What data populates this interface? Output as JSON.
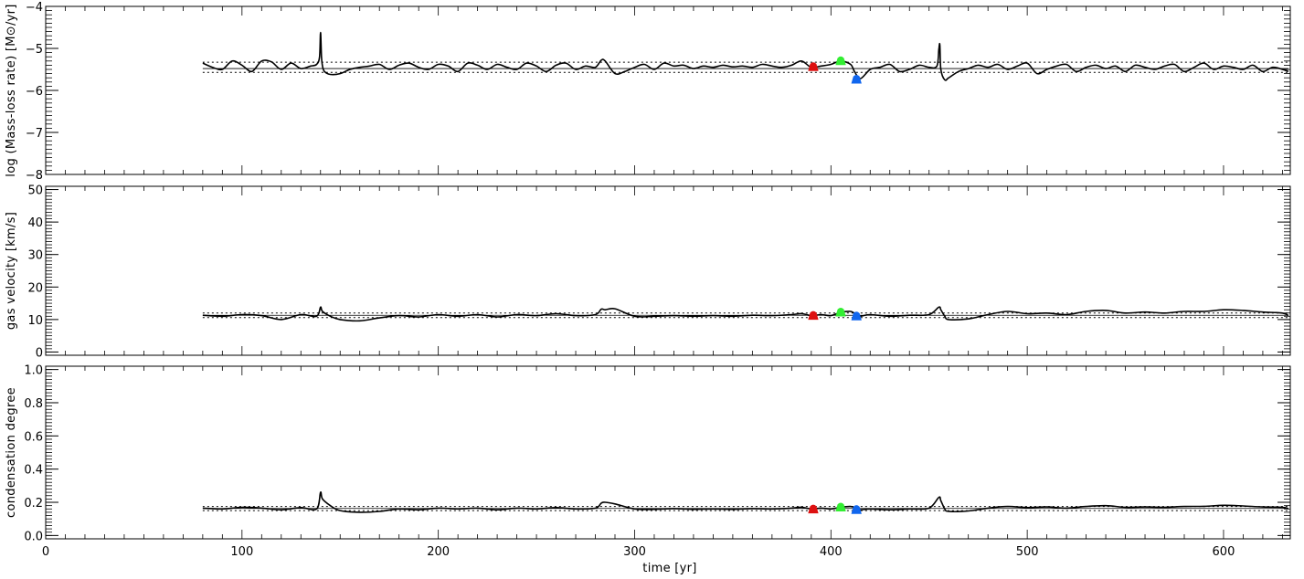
{
  "chart_data": [
    {
      "type": "line",
      "ylabel": "log (Mass-loss rate) [M⊙/yr]",
      "ylim": [
        -8,
        -4
      ],
      "yticks": [
        -8,
        -7,
        -6,
        -5,
        -4
      ],
      "xlim": [
        0,
        634
      ],
      "grid": false,
      "dashed_levels": [
        -5.33,
        -5.57
      ],
      "mean_level": -5.48,
      "series": [
        {
          "x": [
            80,
            85,
            90,
            95,
            100,
            105,
            110,
            115,
            120,
            125,
            130,
            135,
            138,
            139.5,
            140,
            140.5,
            141,
            142,
            145,
            150,
            155,
            160,
            165,
            170,
            175,
            180,
            185,
            190,
            195,
            200,
            205,
            210,
            215,
            220,
            225,
            230,
            235,
            240,
            245,
            250,
            255,
            260,
            265,
            270,
            275,
            280,
            283,
            285,
            290,
            295,
            300,
            305,
            310,
            315,
            320,
            325,
            330,
            335,
            340,
            345,
            350,
            355,
            360,
            365,
            370,
            375,
            380,
            385,
            390,
            395,
            400,
            405,
            410,
            412,
            415,
            420,
            425,
            430,
            435,
            440,
            445,
            450,
            454,
            455,
            455.5,
            456,
            458,
            460,
            465,
            470,
            475,
            480,
            485,
            490,
            495,
            500,
            505,
            510,
            515,
            520,
            525,
            530,
            535,
            540,
            545,
            550,
            555,
            560,
            565,
            570,
            575,
            580,
            585,
            590,
            595,
            600,
            605,
            610,
            615,
            620,
            625,
            630,
            633
          ],
          "y": [
            -5.35,
            -5.45,
            -5.5,
            -5.3,
            -5.4,
            -5.55,
            -5.3,
            -5.32,
            -5.5,
            -5.35,
            -5.48,
            -5.42,
            -5.38,
            -5.2,
            -4.62,
            -5.2,
            -5.42,
            -5.55,
            -5.62,
            -5.6,
            -5.5,
            -5.45,
            -5.42,
            -5.38,
            -5.5,
            -5.4,
            -5.35,
            -5.45,
            -5.5,
            -5.38,
            -5.42,
            -5.55,
            -5.35,
            -5.4,
            -5.5,
            -5.38,
            -5.45,
            -5.5,
            -5.35,
            -5.42,
            -5.55,
            -5.4,
            -5.35,
            -5.5,
            -5.42,
            -5.45,
            -5.28,
            -5.3,
            -5.6,
            -5.55,
            -5.45,
            -5.38,
            -5.5,
            -5.35,
            -5.42,
            -5.4,
            -5.48,
            -5.42,
            -5.45,
            -5.4,
            -5.44,
            -5.42,
            -5.45,
            -5.38,
            -5.42,
            -5.45,
            -5.4,
            -5.3,
            -5.45,
            -5.42,
            -5.38,
            -5.3,
            -5.38,
            -5.55,
            -5.72,
            -5.5,
            -5.45,
            -5.38,
            -5.55,
            -5.5,
            -5.4,
            -5.45,
            -5.42,
            -5.0,
            -4.92,
            -5.5,
            -5.75,
            -5.7,
            -5.55,
            -5.48,
            -5.4,
            -5.45,
            -5.38,
            -5.5,
            -5.42,
            -5.35,
            -5.6,
            -5.5,
            -5.42,
            -5.38,
            -5.55,
            -5.45,
            -5.4,
            -5.48,
            -5.42,
            -5.55,
            -5.4,
            -5.45,
            -5.5,
            -5.42,
            -5.38,
            -5.55,
            -5.45,
            -5.35,
            -5.5,
            -5.42,
            -5.45,
            -5.5,
            -5.4,
            -5.55,
            -5.45,
            -5.5,
            -5.55
          ]
        }
      ],
      "markers": [
        {
          "x": 391,
          "y": -5.44,
          "color": "#dd1111"
        },
        {
          "x": 405,
          "y": -5.3,
          "color": "#33ee33"
        },
        {
          "x": 413,
          "y": -5.74,
          "color": "#1166ee"
        }
      ]
    },
    {
      "type": "line",
      "ylabel": "gas velocity [km/s]",
      "ylim": [
        -1,
        51
      ],
      "yticks": [
        0,
        10,
        20,
        30,
        40,
        50
      ],
      "xlim": [
        0,
        634
      ],
      "grid": false,
      "dashed_levels": [
        12.0,
        10.6
      ],
      "mean_level": 11.3,
      "series": [
        {
          "x": [
            80,
            90,
            100,
            110,
            120,
            130,
            138,
            140,
            141,
            145,
            150,
            160,
            170,
            180,
            190,
            200,
            210,
            220,
            230,
            240,
            250,
            260,
            270,
            280,
            283,
            285,
            290,
            300,
            310,
            320,
            330,
            340,
            350,
            360,
            370,
            380,
            385,
            390,
            395,
            400,
            405,
            410,
            413,
            415,
            420,
            430,
            440,
            450,
            455,
            456,
            458,
            460,
            470,
            480,
            490,
            500,
            510,
            520,
            530,
            540,
            550,
            560,
            570,
            580,
            590,
            600,
            610,
            620,
            630,
            633
          ],
          "y": [
            11.3,
            11.0,
            11.5,
            11.2,
            10.0,
            11.5,
            11.0,
            13.8,
            12.5,
            11.0,
            10.0,
            9.6,
            10.5,
            11.2,
            10.8,
            11.5,
            11.0,
            11.5,
            10.8,
            11.5,
            11.2,
            11.8,
            11.2,
            11.5,
            13.2,
            13.0,
            13.3,
            11.0,
            11.0,
            11.2,
            11.0,
            11.2,
            11.0,
            11.3,
            11.2,
            11.5,
            11.8,
            11.2,
            11.5,
            11.2,
            12.2,
            12.5,
            11.5,
            11.0,
            11.5,
            11.0,
            11.3,
            11.5,
            13.8,
            13.0,
            11.0,
            10.0,
            10.2,
            11.5,
            12.5,
            11.8,
            12.0,
            11.5,
            12.5,
            12.8,
            12.0,
            12.3,
            12.0,
            12.5,
            12.5,
            13.0,
            12.8,
            12.3,
            12.0,
            11.2
          ]
        }
      ],
      "markers": [
        {
          "x": 391,
          "y": 11.2,
          "color": "#dd1111"
        },
        {
          "x": 405,
          "y": 12.2,
          "color": "#33ee33"
        },
        {
          "x": 413,
          "y": 11.0,
          "color": "#1166ee"
        }
      ]
    },
    {
      "type": "line",
      "ylabel": "condensation degree",
      "ylim": [
        -0.02,
        1.02
      ],
      "yticks": [
        0.0,
        0.2,
        0.4,
        0.6,
        0.8,
        1.0
      ],
      "yticklabels": [
        "0.0",
        "0.2",
        "0.4",
        "0.6",
        "0.8",
        "1.0"
      ],
      "xlim": [
        0,
        634
      ],
      "xticks": [
        0,
        100,
        200,
        300,
        400,
        500,
        600
      ],
      "xlabel": "time [yr]",
      "grid": false,
      "dashed_levels": [
        0.175,
        0.15
      ],
      "mean_level": 0.163,
      "series": [
        {
          "x": [
            80,
            90,
            100,
            110,
            120,
            130,
            138,
            140,
            141,
            145,
            150,
            160,
            170,
            180,
            190,
            200,
            210,
            220,
            230,
            240,
            250,
            260,
            270,
            280,
            283,
            285,
            290,
            300,
            310,
            320,
            330,
            340,
            350,
            360,
            370,
            380,
            385,
            390,
            395,
            400,
            405,
            410,
            413,
            415,
            420,
            430,
            440,
            450,
            455,
            456,
            458,
            460,
            470,
            480,
            490,
            500,
            510,
            520,
            530,
            540,
            550,
            560,
            570,
            580,
            590,
            600,
            610,
            620,
            630,
            633
          ],
          "y": [
            0.165,
            0.16,
            0.17,
            0.165,
            0.155,
            0.168,
            0.16,
            0.26,
            0.22,
            0.18,
            0.15,
            0.14,
            0.145,
            0.16,
            0.155,
            0.165,
            0.16,
            0.165,
            0.155,
            0.165,
            0.16,
            0.168,
            0.16,
            0.165,
            0.195,
            0.2,
            0.19,
            0.16,
            0.158,
            0.162,
            0.158,
            0.16,
            0.158,
            0.162,
            0.16,
            0.165,
            0.17,
            0.16,
            0.165,
            0.16,
            0.17,
            0.175,
            0.165,
            0.155,
            0.16,
            0.155,
            0.16,
            0.165,
            0.23,
            0.21,
            0.16,
            0.145,
            0.148,
            0.165,
            0.175,
            0.168,
            0.172,
            0.165,
            0.175,
            0.18,
            0.17,
            0.172,
            0.17,
            0.175,
            0.176,
            0.182,
            0.178,
            0.172,
            0.17,
            0.162
          ]
        }
      ],
      "markers": [
        {
          "x": 391,
          "y": 0.158,
          "color": "#dd1111"
        },
        {
          "x": 405,
          "y": 0.17,
          "color": "#33ee33"
        },
        {
          "x": 413,
          "y": 0.155,
          "color": "#1166ee"
        }
      ]
    }
  ]
}
